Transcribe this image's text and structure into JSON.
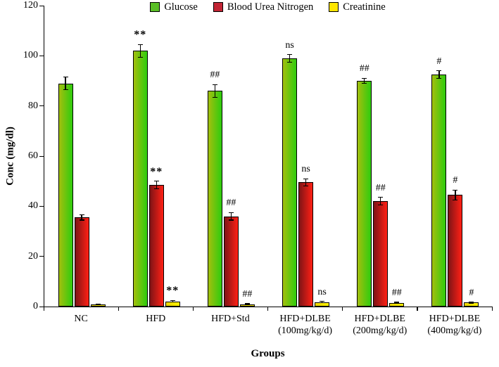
{
  "chart_data": {
    "type": "bar",
    "title": "",
    "xlabel": "Groups",
    "ylabel": "Conc (mg/dl)",
    "ylim": [
      0,
      120
    ],
    "yticks": [
      0,
      20,
      40,
      60,
      80,
      100,
      120
    ],
    "grid": false,
    "legend_position": "top",
    "categories": [
      "NC",
      "HFD",
      "HFD+Std",
      "HFD+DLBE\n(100mg/kg/d)",
      "HFD+DLBE\n(200mg/kg/d)",
      "HFD+DLBE\n(400mg/kg/d)"
    ],
    "series": [
      {
        "name": "Glucose",
        "legend_color": "#5abf26",
        "gradient": [
          "#a3bf0e",
          "#2ecc0e"
        ],
        "values": [
          89,
          102,
          86,
          99,
          90,
          92.5
        ],
        "errors": [
          2.5,
          2.5,
          2.5,
          1.5,
          1,
          1.5
        ],
        "annotations": [
          "",
          "**",
          "##",
          "ns",
          "##",
          "#"
        ]
      },
      {
        "name": "Blood Urea Nitrogen",
        "legend_color": "#c22535",
        "gradient": [
          "#7e1416",
          "#ff2015"
        ],
        "values": [
          35.5,
          48.5,
          36,
          49.5,
          42,
          44.5
        ],
        "errors": [
          1,
          1.5,
          1.5,
          1.5,
          1.5,
          2
        ],
        "annotations": [
          "",
          "**",
          "##",
          "ns",
          "##",
          "#"
        ]
      },
      {
        "name": "Creatinine",
        "legend_color": "#ffe600",
        "gradient": [
          "#e8d400",
          "#fff200"
        ],
        "values": [
          0.8,
          2.1,
          0.9,
          1.8,
          1.5,
          1.6
        ],
        "errors": [
          0.2,
          0.3,
          0.2,
          0.2,
          0.2,
          0.2
        ],
        "annotations": [
          "",
          "**",
          "##",
          "ns",
          "##",
          "#"
        ]
      }
    ]
  }
}
